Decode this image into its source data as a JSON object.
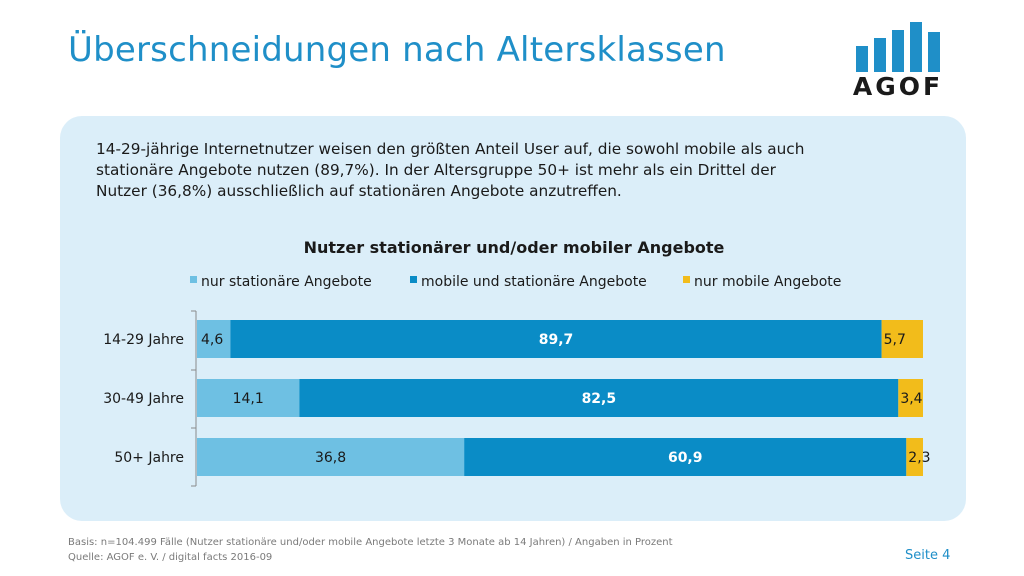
{
  "slide": {
    "title": "Überschneidungen nach Altersklassen",
    "logo_text": "AGOF",
    "intro_lines": [
      "14-29-jährige Internetnutzer weisen den größten Anteil User auf, die sowohl mobile als auch",
      "stationäre Angebote nutzen (89,7%). In der Altersgruppe 50+ ist mehr als ein Drittel der",
      "Nutzer (36,8%) ausschließlich auf stationären Angebote anzutreffen."
    ],
    "footer_basis": "Basis: n=104.499 Fälle (Nutzer stationäre und/oder mobile Angebote letzte 3 Monate ab 14 Jahren) / Angaben in Prozent",
    "footer_source": "Quelle: AGOF e. V. / digital facts 2016-09",
    "page_label": "Seite 4"
  },
  "colors": {
    "brand_blue": "#1f8fc8",
    "panel_bg": "#dbeef9",
    "light_blue": "#6ec0e3",
    "dark_blue": "#0a8cc6",
    "yellow": "#f2bc1b"
  },
  "chart_data": {
    "type": "bar",
    "orientation": "horizontal",
    "stacked": true,
    "title": "Nutzer stationärer und/oder mobiler Angebote",
    "legend_position": "top",
    "categories": [
      "14-29 Jahre",
      "30-49 Jahre",
      "50+ Jahre"
    ],
    "series": [
      {
        "name": "nur stationäre Angebote",
        "color": "#6ec0e3",
        "label_color": "#1a1a1a",
        "label_bold": false,
        "values": [
          4.6,
          14.1,
          36.8
        ],
        "labels": [
          "4,6",
          "14,1",
          "36,8"
        ]
      },
      {
        "name": "mobile und stationäre Angebote",
        "color": "#0a8cc6",
        "label_color": "#ffffff",
        "label_bold": true,
        "values": [
          89.7,
          82.5,
          60.9
        ],
        "labels": [
          "89,7",
          "82,5",
          "60,9"
        ]
      },
      {
        "name": "nur mobile Angebote",
        "color": "#f2bc1b",
        "label_color": "#1a1a1a",
        "label_bold": false,
        "values": [
          5.7,
          3.4,
          2.3
        ],
        "labels": [
          "5,7",
          "3,4",
          "2,3"
        ]
      }
    ],
    "xlim": [
      0,
      100
    ],
    "grid": false
  }
}
